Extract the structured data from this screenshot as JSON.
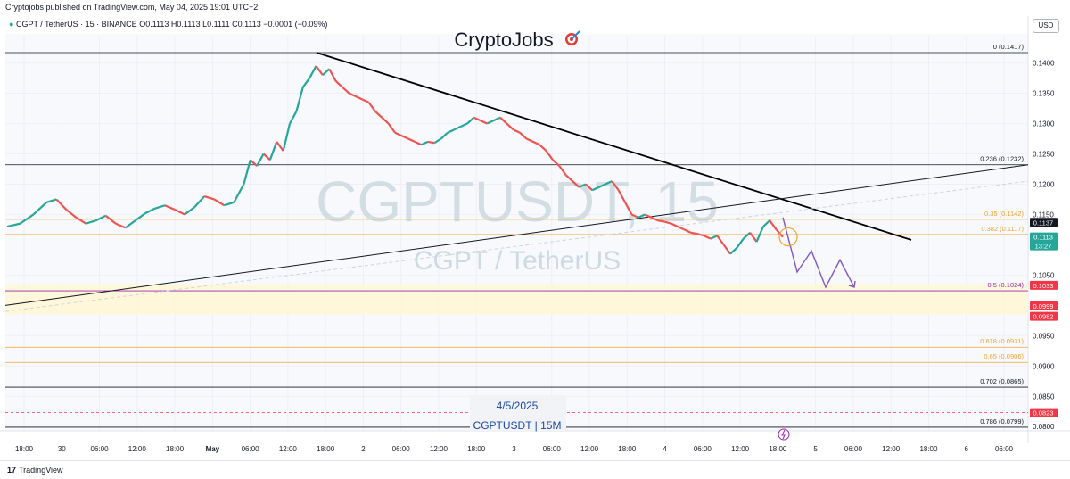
{
  "header": {
    "publisher": "Cryptojobs published on TradingView.com, May 04, 2025 19:01 UTC+2",
    "symbol": "CGPT / TetherUS · 15 · BINANCE",
    "ohlc": "O0.1113 H0.1113 L0.1111 C0.1113 −0.0001 (−0.09%)",
    "currency": "USD"
  },
  "footer": {
    "brand": "TradingView",
    "brand_mark": "17"
  },
  "chart_data": {
    "type": "line",
    "title": "CryptoJobs",
    "title_icon": "dart-target-icon",
    "watermark_symbol": "CGPTUSDT, 15",
    "watermark_name": "CGPT / TetherUS",
    "annotation_date": "4/5/2025",
    "annotation_label": "CGPTUSDT | 15M",
    "ylim": [
      0.0793,
      0.1445
    ],
    "grid": true,
    "y_ticks": [
      "0.1400",
      "0.1350",
      "0.1300",
      "0.1250",
      "0.1200",
      "0.1150",
      "0.1050",
      "0.0950",
      "0.0900",
      "0.0850",
      "0.0800"
    ],
    "x_ticks": [
      "18:00",
      "30",
      "06:00",
      "12:00",
      "18:00",
      "May",
      "06:00",
      "12:00",
      "18:00",
      "2",
      "06:00",
      "12:00",
      "18:00",
      "3",
      "06:00",
      "12:00",
      "18:00",
      "4",
      "06:00",
      "12:00",
      "18:00",
      "5",
      "06:00",
      "12:00",
      "18:00",
      "6",
      "06:00"
    ],
    "x_tick_bold": [
      "May"
    ],
    "fib_levels": [
      {
        "label": "0 (0.1417)",
        "value": 0.1417,
        "color": "#131722"
      },
      {
        "label": "0.236 (0.1232)",
        "value": 0.1232,
        "color": "#131722"
      },
      {
        "label": "0.35 (0.1142)",
        "value": 0.1142,
        "color": "#f0a430"
      },
      {
        "label": "0.382 (0.1117)",
        "value": 0.1117,
        "color": "#f0a430"
      },
      {
        "label": "0.5 (0.1024)",
        "value": 0.1024,
        "color": "#9c27b0"
      },
      {
        "label": "0.618 (0.0931)",
        "value": 0.0931,
        "color": "#f0a430"
      },
      {
        "label": "0.65 (0.0906)",
        "value": 0.0906,
        "color": "#f0a430"
      },
      {
        "label": "0.702 (0.0865)",
        "value": 0.0865,
        "color": "#131722"
      },
      {
        "label": "0.786 (0.0799)",
        "value": 0.0799,
        "color": "#131722"
      }
    ],
    "price_badges": [
      {
        "label": "0.1137",
        "value": 0.1137,
        "color": "#131722"
      },
      {
        "label": "0.1113",
        "value": 0.1113,
        "color": "#26a69a",
        "sub": "13:27"
      },
      {
        "label": "0.1033",
        "value": 0.1033,
        "color": "#f23645"
      },
      {
        "label": "0.0999",
        "value": 0.0999,
        "color": "#f23645"
      },
      {
        "label": "0.0982",
        "value": 0.0982,
        "color": "#f23645"
      },
      {
        "label": "0.0823",
        "value": 0.0823,
        "color": "#f23645"
      }
    ],
    "zone": [
      0.0985,
      0.1035
    ],
    "dashed_level": 0.0823,
    "price_path": [
      [
        0,
        0.113
      ],
      [
        4,
        0.1135
      ],
      [
        8,
        0.115
      ],
      [
        12,
        0.117
      ],
      [
        15,
        0.1175
      ],
      [
        18,
        0.1158
      ],
      [
        21,
        0.1145
      ],
      [
        24,
        0.1135
      ],
      [
        27,
        0.114
      ],
      [
        30,
        0.1148
      ],
      [
        33,
        0.1135
      ],
      [
        36,
        0.1128
      ],
      [
        39,
        0.114
      ],
      [
        42,
        0.1152
      ],
      [
        45,
        0.116
      ],
      [
        48,
        0.1165
      ],
      [
        51,
        0.1158
      ],
      [
        54,
        0.115
      ],
      [
        57,
        0.1162
      ],
      [
        60,
        0.118
      ],
      [
        63,
        0.1175
      ],
      [
        66,
        0.1165
      ],
      [
        69,
        0.117
      ],
      [
        72,
        0.12
      ],
      [
        74,
        0.124
      ],
      [
        76,
        0.123
      ],
      [
        78,
        0.125
      ],
      [
        80,
        0.124
      ],
      [
        82,
        0.127
      ],
      [
        84,
        0.1255
      ],
      [
        86,
        0.13
      ],
      [
        88,
        0.132
      ],
      [
        90,
        0.136
      ],
      [
        92,
        0.1375
      ],
      [
        94,
        0.1395
      ],
      [
        96,
        0.138
      ],
      [
        98,
        0.139
      ],
      [
        100,
        0.137
      ],
      [
        102,
        0.136
      ],
      [
        104,
        0.135
      ],
      [
        106,
        0.1345
      ],
      [
        108,
        0.134
      ],
      [
        110,
        0.1335
      ],
      [
        112,
        0.132
      ],
      [
        114,
        0.131
      ],
      [
        116,
        0.13
      ],
      [
        118,
        0.1285
      ],
      [
        120,
        0.128
      ],
      [
        122,
        0.1275
      ],
      [
        124,
        0.127
      ],
      [
        126,
        0.1265
      ],
      [
        128,
        0.127
      ],
      [
        130,
        0.1268
      ],
      [
        132,
        0.1275
      ],
      [
        134,
        0.1285
      ],
      [
        136,
        0.129
      ],
      [
        138,
        0.1295
      ],
      [
        140,
        0.13
      ],
      [
        142,
        0.131
      ],
      [
        144,
        0.1305
      ],
      [
        146,
        0.13
      ],
      [
        148,
        0.1305
      ],
      [
        150,
        0.131
      ],
      [
        152,
        0.13
      ],
      [
        154,
        0.129
      ],
      [
        156,
        0.1285
      ],
      [
        158,
        0.1275
      ],
      [
        160,
        0.127
      ],
      [
        162,
        0.1265
      ],
      [
        164,
        0.1255
      ],
      [
        166,
        0.124
      ],
      [
        168,
        0.123
      ],
      [
        170,
        0.1215
      ],
      [
        172,
        0.1205
      ],
      [
        174,
        0.1195
      ],
      [
        176,
        0.12
      ],
      [
        178,
        0.119
      ],
      [
        180,
        0.1195
      ],
      [
        182,
        0.12
      ],
      [
        184,
        0.1205
      ],
      [
        186,
        0.119
      ],
      [
        188,
        0.117
      ],
      [
        190,
        0.115
      ],
      [
        192,
        0.1145
      ],
      [
        194,
        0.115
      ],
      [
        196,
        0.1145
      ],
      [
        198,
        0.114
      ],
      [
        200,
        0.1138
      ],
      [
        202,
        0.1135
      ],
      [
        204,
        0.113
      ],
      [
        206,
        0.1125
      ],
      [
        208,
        0.112
      ],
      [
        210,
        0.1118
      ],
      [
        212,
        0.1115
      ],
      [
        214,
        0.111
      ],
      [
        216,
        0.1115
      ],
      [
        218,
        0.11
      ],
      [
        220,
        0.1085
      ],
      [
        222,
        0.1095
      ],
      [
        224,
        0.111
      ],
      [
        226,
        0.112
      ],
      [
        228,
        0.1105
      ],
      [
        230,
        0.113
      ],
      [
        232,
        0.114
      ],
      [
        234,
        0.1125
      ],
      [
        236,
        0.1113
      ]
    ],
    "x_span": 236,
    "projection_path": [
      [
        0.1145,
        0
      ],
      [
        0.1055,
        1
      ],
      [
        0.109,
        2
      ],
      [
        0.103,
        3
      ],
      [
        0.1075,
        4
      ],
      [
        0.103,
        5
      ]
    ]
  }
}
